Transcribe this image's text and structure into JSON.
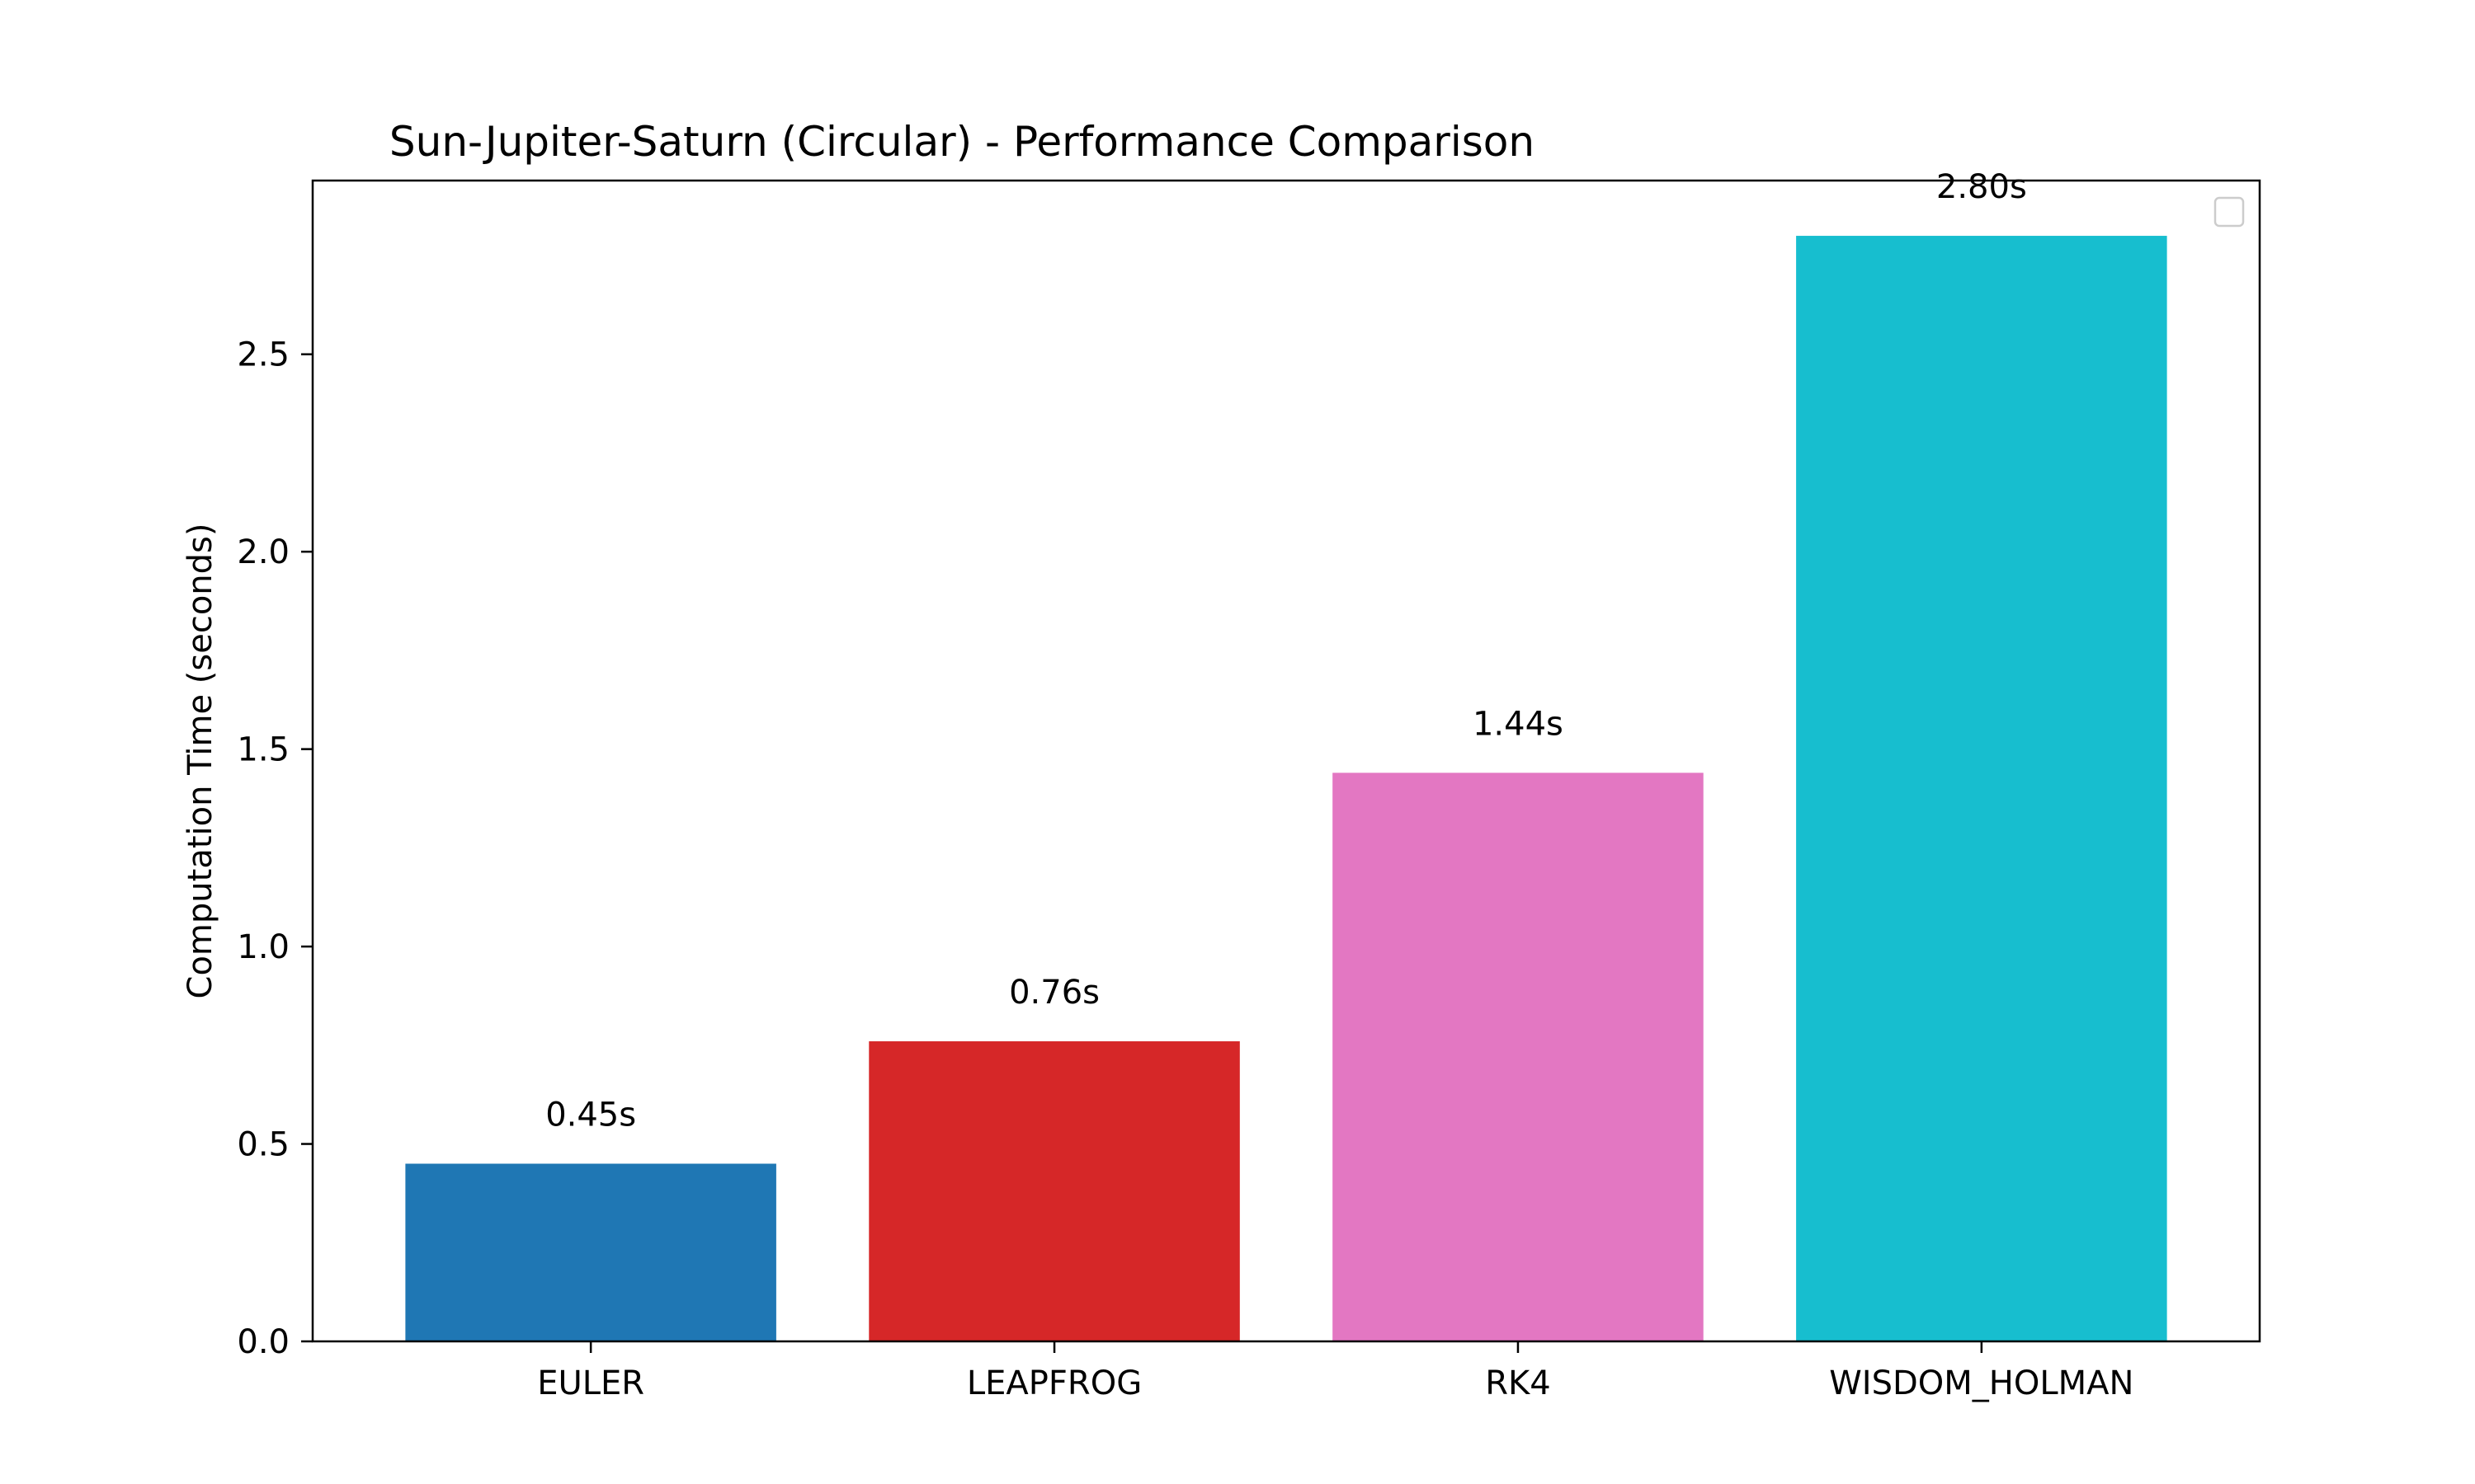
{
  "chart_data": {
    "type": "bar",
    "title": "Sun-Jupiter-Saturn (Circular) - Performance Comparison",
    "xlabel": "",
    "ylabel": "Computation Time (seconds)",
    "categories": [
      "EULER",
      "LEAPFROG",
      "RK4",
      "WISDOM_HOLMAN"
    ],
    "values": [
      0.45,
      0.76,
      1.44,
      2.8
    ],
    "value_labels": [
      "0.45s",
      "0.76s",
      "1.44s",
      "2.80s"
    ],
    "colors": [
      "#1f77b4",
      "#d62728",
      "#e377c2",
      "#17becf"
    ],
    "ylim": [
      0,
      2.94
    ],
    "yticks": [
      0.0,
      0.5,
      1.0,
      1.5,
      2.0,
      2.5
    ],
    "ytick_labels": [
      "0.0",
      "0.5",
      "1.0",
      "1.5",
      "2.0",
      "2.5"
    ],
    "grid": false,
    "legend": {
      "placement": "top-right",
      "entries": []
    }
  }
}
